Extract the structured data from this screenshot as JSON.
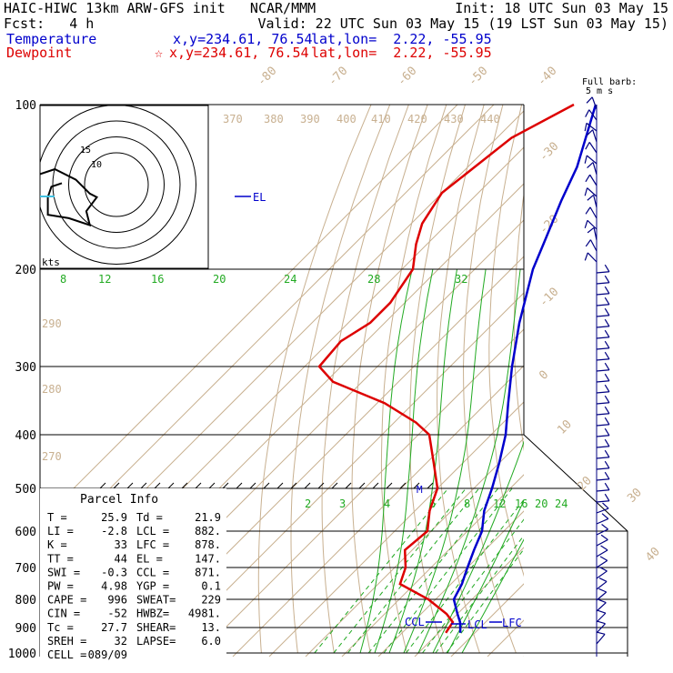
{
  "header": {
    "line1_left": "HAIC-HIWC 13km ARW-GFS init   NCAR/MMM",
    "line1_right": "Init: 18 UTC Sun 03 May 15",
    "line2_left": "Fcst:   4 h",
    "line2_right": "Valid: 22 UTC Sun 03 May 15 (19 LST Sun 03 May 15)",
    "temp_label": "Temperature",
    "temp_xy": "x,y=234.61, 76.54",
    "temp_latlon": "lat,lon=  2.22, -55.95",
    "dew_label": "Dewpoint",
    "dew_xy": "x,y=234.61, 76.54",
    "dew_latlon": "lat,lon=  2.22, -55.95",
    "colors": {
      "temperature": "#0000cc",
      "dewpoint": "#dd0000"
    }
  },
  "barb_key": {
    "line1": "Full barb:",
    "line2": "5 m s"
  },
  "hodograph": {
    "units": "kts",
    "ring_labels": [
      "15",
      "10"
    ],
    "trace_black": [
      [
        -7,
        6
      ],
      [
        -4,
        9
      ],
      [
        -1,
        10
      ],
      [
        2,
        8.5
      ],
      [
        4,
        6.5
      ],
      [
        5,
        6
      ],
      [
        3.5,
        4
      ],
      [
        4,
        2
      ],
      [
        1,
        3
      ],
      [
        -2,
        3.5
      ],
      [
        -2,
        6
      ],
      [
        -1.5,
        7.5
      ],
      [
        0,
        8
      ]
    ],
    "trace_cyan": [
      [
        -10,
        4
      ],
      [
        -9.3,
        4.7
      ]
    ],
    "trace_red": [
      [
        -7,
        6
      ],
      [
        -6.5,
        2
      ],
      [
        -4.5,
        1
      ]
    ]
  },
  "chart_data": {
    "type": "skew-t",
    "pressure_levels": [
      100,
      200,
      300,
      400,
      500,
      600,
      700,
      800,
      900,
      1000
    ],
    "pressure_labels": [
      "100",
      "200",
      "300",
      "400",
      "500",
      "600",
      "700",
      "800",
      "900",
      "1000"
    ],
    "isotherms": [
      -80,
      -70,
      -60,
      -50,
      -40,
      -30,
      -20,
      -10,
      0,
      10,
      20,
      30,
      40
    ],
    "theta_labels": [
      "370",
      "380",
      "390",
      "400",
      "410",
      "420",
      "430",
      "440",
      "290",
      "280",
      "270"
    ],
    "mixing_ratio_upper": [
      "8",
      "12",
      "16",
      "20",
      "24",
      "28",
      "32"
    ],
    "mixing_ratio_lower": [
      "2",
      "3",
      "4",
      "6",
      "8",
      "12",
      "16",
      "20",
      "24"
    ],
    "temperature": {
      "name": "Temperature",
      "points": [
        [
          100,
          -82
        ],
        [
          130,
          -70
        ],
        [
          150,
          -65
        ],
        [
          180,
          -58
        ],
        [
          200,
          -54
        ],
        [
          250,
          -43
        ],
        [
          300,
          -33
        ],
        [
          350,
          -24
        ],
        [
          400,
          -16
        ],
        [
          450,
          -10
        ],
        [
          500,
          -5
        ],
        [
          550,
          -1
        ],
        [
          600,
          4
        ],
        [
          650,
          7
        ],
        [
          700,
          10
        ],
        [
          750,
          13
        ],
        [
          800,
          15
        ],
        [
          850,
          20
        ],
        [
          880,
          23
        ],
        [
          920,
          26
        ]
      ]
    },
    "dewpoint": {
      "name": "Dewpoint",
      "points": [
        [
          100,
          -88
        ],
        [
          115,
          -96
        ],
        [
          145,
          -100
        ],
        [
          165,
          -97
        ],
        [
          180,
          -93
        ],
        [
          200,
          -87
        ],
        [
          230,
          -84
        ],
        [
          250,
          -84
        ],
        [
          270,
          -87
        ],
        [
          300,
          -86
        ],
        [
          320,
          -78
        ],
        [
          350,
          -58
        ],
        [
          380,
          -44
        ],
        [
          400,
          -37
        ],
        [
          450,
          -28
        ],
        [
          500,
          -20
        ],
        [
          550,
          -16
        ],
        [
          600,
          -11
        ],
        [
          650,
          -12
        ],
        [
          700,
          -7
        ],
        [
          750,
          -4
        ],
        [
          800,
          8
        ],
        [
          850,
          17
        ],
        [
          880,
          21
        ],
        [
          920,
          22
        ]
      ]
    },
    "markers": {
      "el": "EL",
      "ccl": "CCL",
      "lcl": "LCL",
      "lfc": "LFC",
      "m": "M"
    },
    "parcel_info": {
      "title": "Parcel Info",
      "rows": [
        [
          "T   =",
          "25.9",
          "Td =",
          "21.9"
        ],
        [
          "LI  =",
          "-2.8",
          "LCL =",
          "882."
        ],
        [
          "K   =",
          "33",
          "LFC =",
          "878."
        ],
        [
          "TT  =",
          "44",
          "EL  =",
          "147."
        ],
        [
          "SWI =",
          "-0.3",
          "CCL =",
          "871."
        ],
        [
          "PW  =",
          "4.98",
          "YGP =",
          "0.1"
        ],
        [
          "CAPE =",
          "996",
          "SWEAT=",
          "229"
        ],
        [
          "CIN  =",
          "-52",
          "HWBZ=",
          "4981."
        ],
        [
          "Tc  =",
          "27.7",
          "SHEAR=",
          "13."
        ],
        [
          "SREH =",
          "32",
          "LAPSE=",
          "6.0"
        ],
        [
          "CELL =",
          "089/09",
          "",
          ""
        ]
      ]
    }
  }
}
